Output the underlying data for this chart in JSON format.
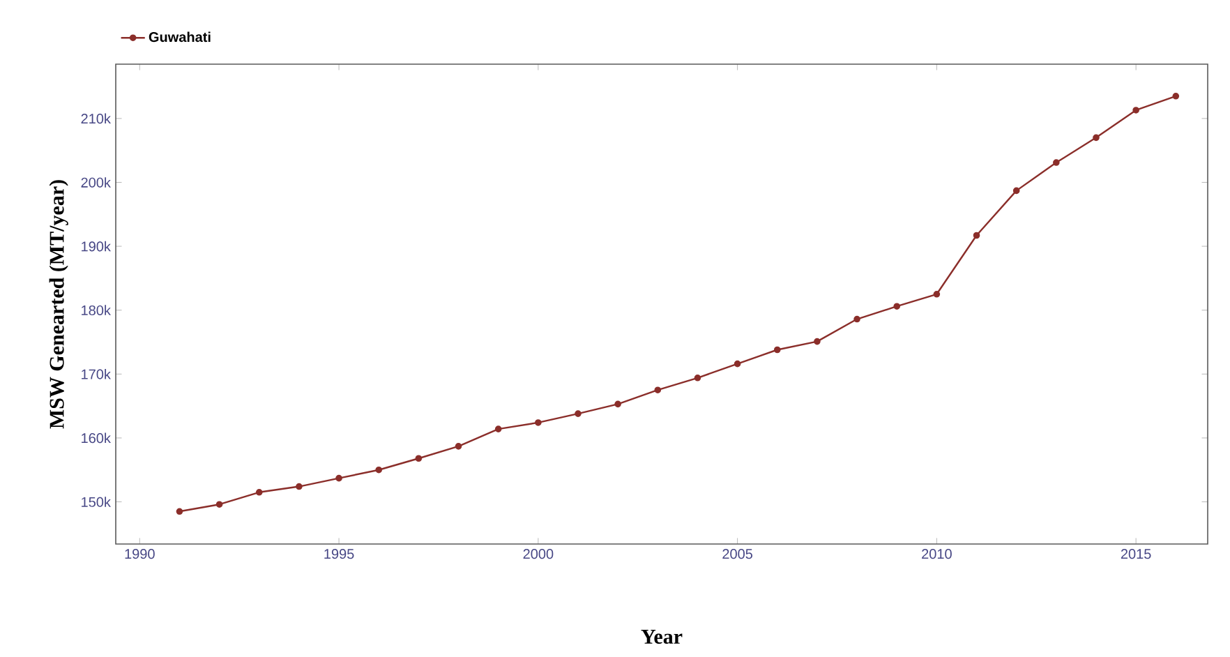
{
  "chart_data": {
    "type": "line",
    "xlabel": "Year",
    "ylabel": "MSW Genearted (MT/year)",
    "x": [
      1991,
      1992,
      1993,
      1994,
      1995,
      1996,
      1997,
      1998,
      1999,
      2000,
      2001,
      2002,
      2003,
      2004,
      2005,
      2006,
      2007,
      2008,
      2009,
      2010,
      2011,
      2012,
      2013,
      2014,
      2015,
      2016
    ],
    "series": [
      {
        "name": "Guwahati",
        "color": "#8b2e2a",
        "values": [
          148500,
          149600,
          151500,
          152400,
          153700,
          155000,
          156800,
          158700,
          161400,
          162400,
          163800,
          165300,
          167500,
          169400,
          171600,
          173800,
          175100,
          178600,
          180600,
          182500,
          191700,
          198700,
          203100,
          207000,
          211300,
          213500
        ]
      }
    ],
    "xlim": [
      1989.4,
      2016.8
    ],
    "ylim": [
      143400,
      218500
    ],
    "xticks": [
      1990,
      1995,
      2000,
      2005,
      2010,
      2015
    ],
    "yticks": [
      {
        "value": 150000,
        "label": "150k"
      },
      {
        "value": 160000,
        "label": "160k"
      },
      {
        "value": 170000,
        "label": "170k"
      },
      {
        "value": 180000,
        "label": "180k"
      },
      {
        "value": 190000,
        "label": "190k"
      },
      {
        "value": 200000,
        "label": "200k"
      },
      {
        "value": 210000,
        "label": "210k"
      }
    ],
    "legend": "top left",
    "marker": "circle",
    "line_style": "solid",
    "grid": false
  }
}
